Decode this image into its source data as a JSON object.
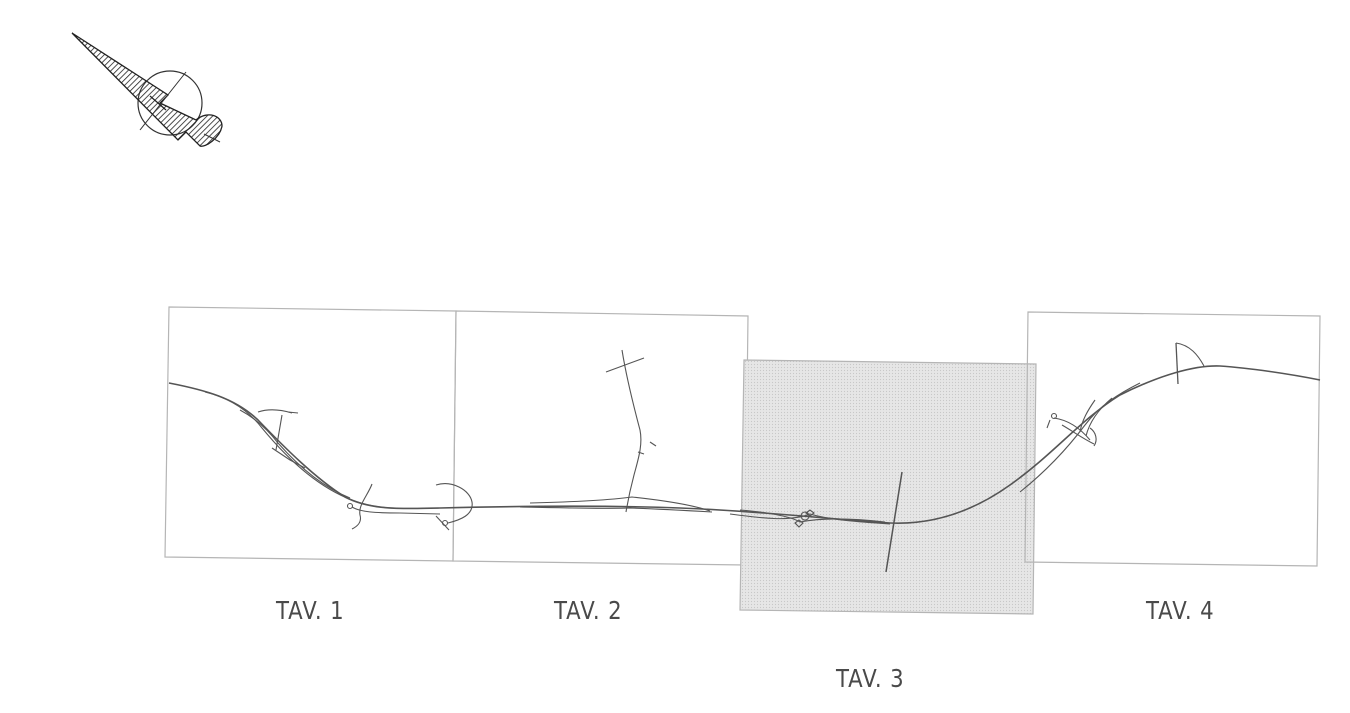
{
  "sheets": [
    {
      "id": "tav1",
      "label": "TAV. 1",
      "highlighted": false
    },
    {
      "id": "tav2",
      "label": "TAV. 2",
      "highlighted": false
    },
    {
      "id": "tav3",
      "label": "TAV. 3",
      "highlighted": true
    },
    {
      "id": "tav4",
      "label": "TAV. 4",
      "highlighted": false
    }
  ],
  "colors": {
    "background": "#ffffff",
    "sheet_border": "#b5b5b5",
    "highlight_fill": "#e4e4e4",
    "road_line": "#555555",
    "label_text": "#4a4a4a"
  },
  "icons": {
    "north_arrow": "north-arrow-icon"
  }
}
